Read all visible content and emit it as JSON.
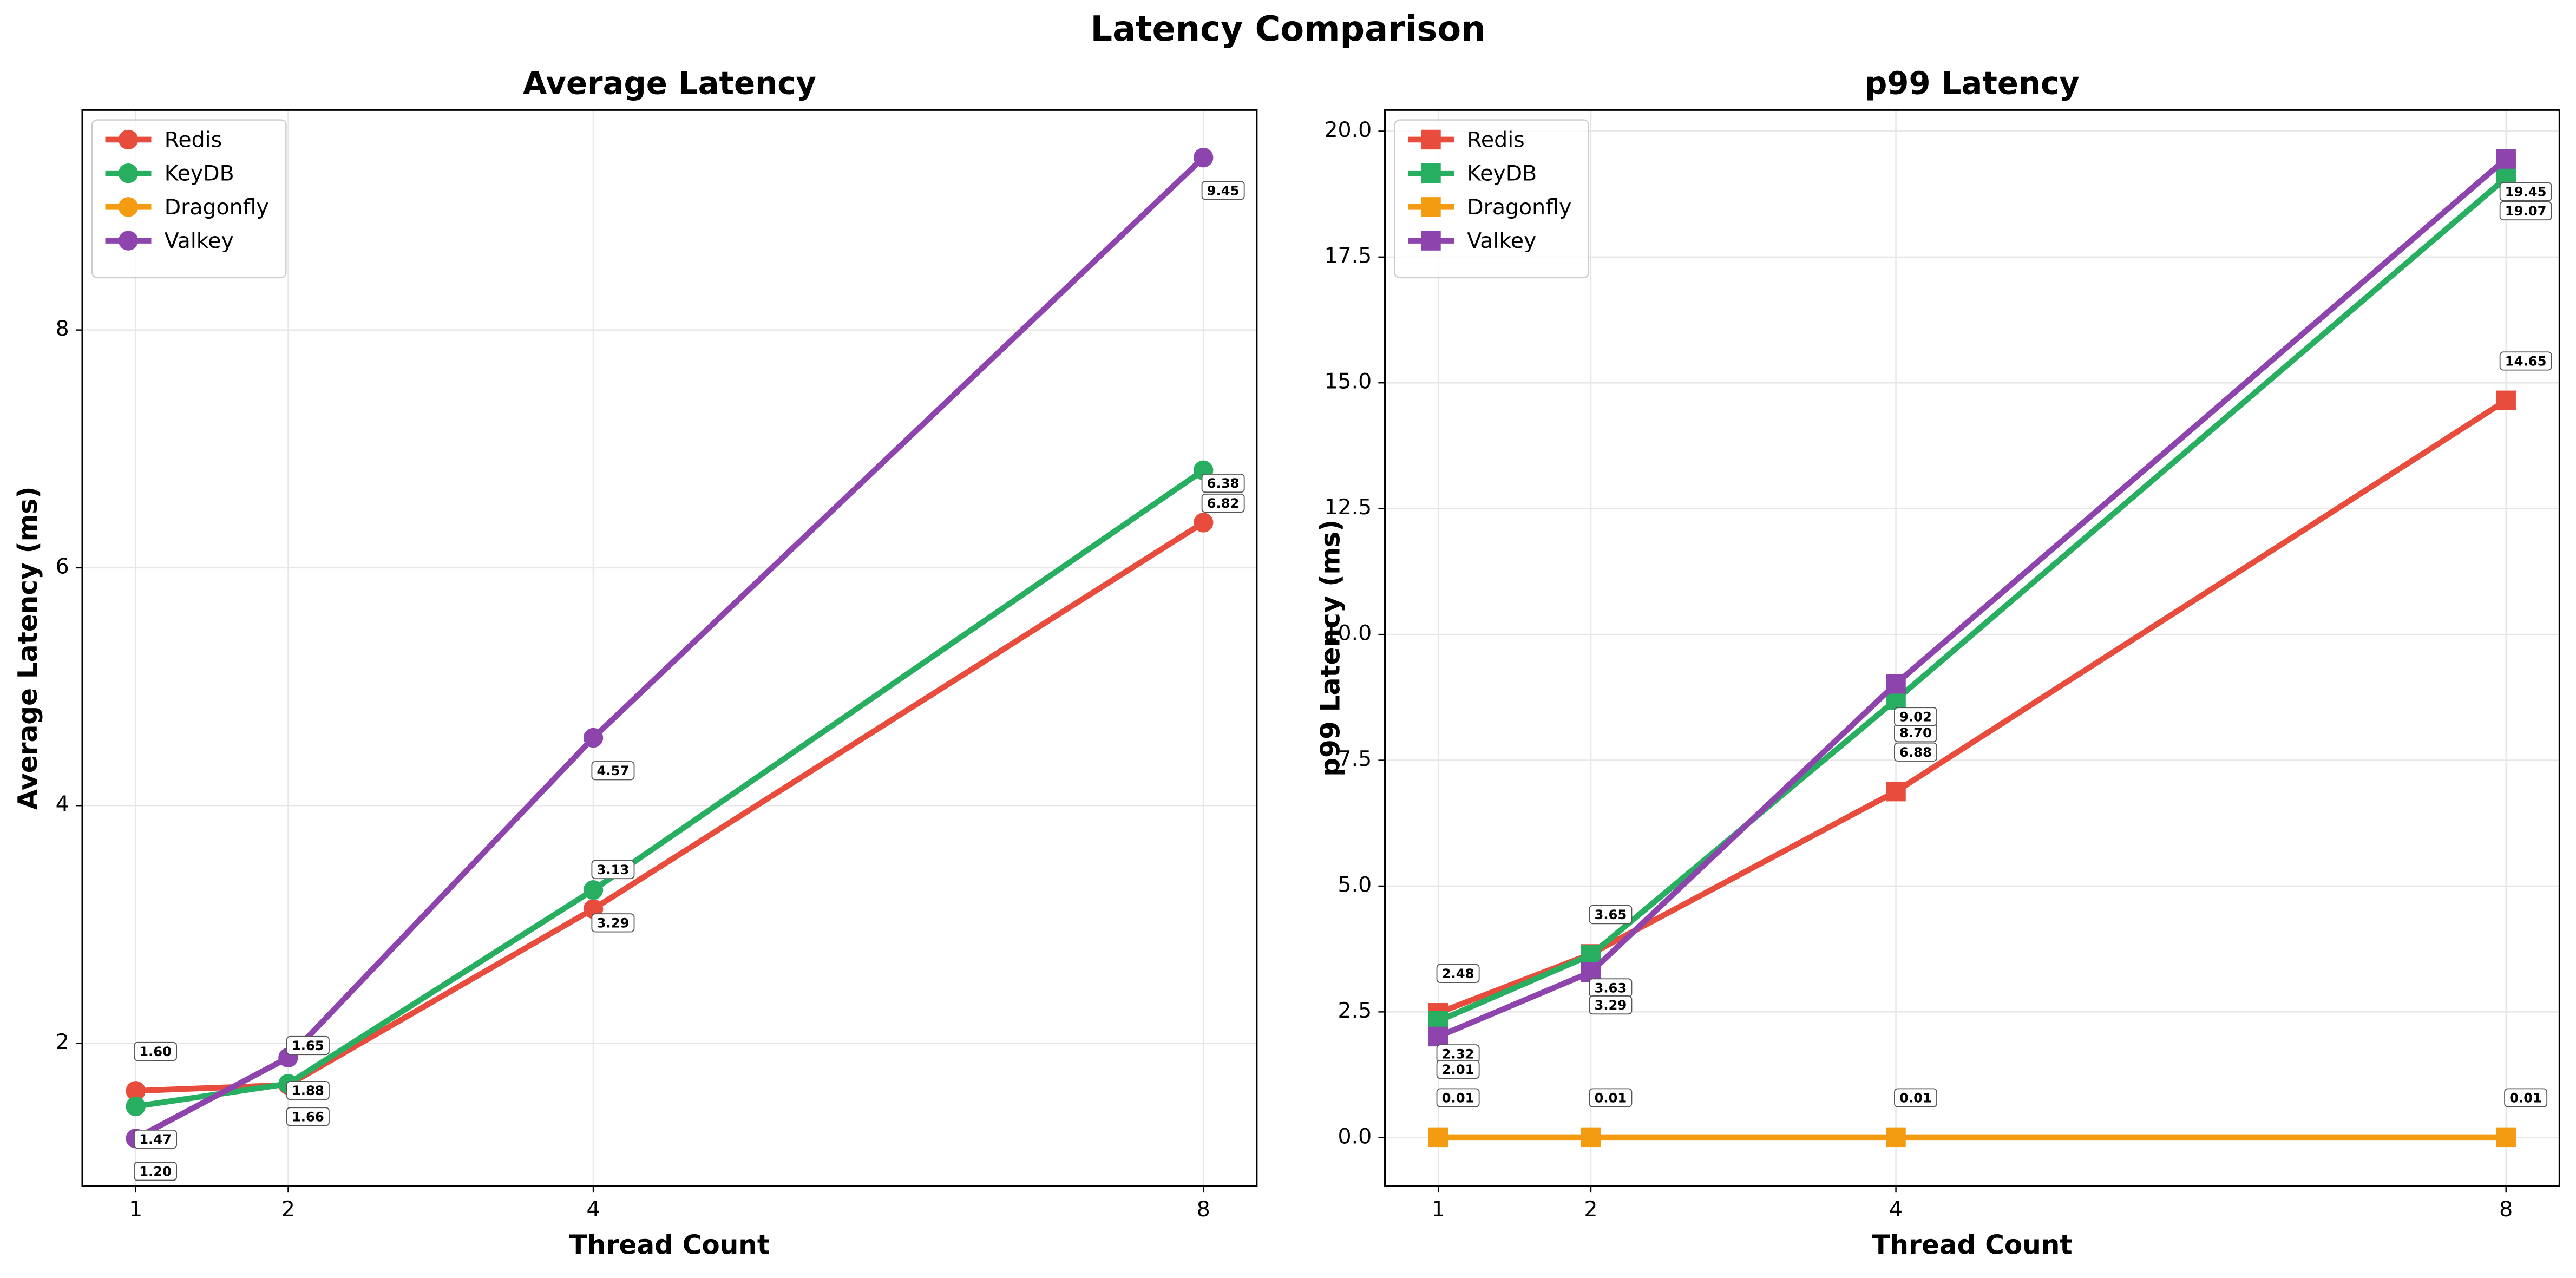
{
  "title": "Latency Comparison",
  "chart_data": [
    {
      "type": "line",
      "title": "Average Latency",
      "x_label": "Thread Count",
      "y_label": "Average Latency (ms)",
      "x": [
        1,
        2,
        4,
        8
      ],
      "xlim": [
        0.65,
        8.35
      ],
      "xticks": [
        1,
        2,
        4,
        8
      ],
      "ylim": [
        0.8,
        9.85
      ],
      "yticks": [
        2,
        4,
        6,
        8
      ],
      "grid": true,
      "legend": "upper left",
      "marker": "circle",
      "series": [
        {
          "name": "Redis",
          "color": "#e74c3c",
          "values": [
            1.6,
            1.65,
            3.13,
            6.38
          ],
          "value_labels": [
            "1.60",
            "1.65",
            "3.13",
            "6.38"
          ]
        },
        {
          "name": "KeyDB",
          "color": "#27ae60",
          "values": [
            1.47,
            1.66,
            3.29,
            6.82
          ],
          "value_labels": [
            "1.47",
            "1.66",
            "3.29",
            "6.82"
          ]
        },
        {
          "name": "Dragonfly",
          "color": "#f39c12",
          "values": [
            null,
            null,
            null,
            null
          ]
        },
        {
          "name": "Valkey",
          "color": "#8e44ad",
          "values": [
            1.2,
            1.88,
            4.57,
            9.45
          ],
          "value_labels": [
            "1.20",
            "1.88",
            "4.57",
            "9.45"
          ]
        }
      ]
    },
    {
      "type": "line",
      "title": "p99 Latency",
      "x_label": "Thread Count",
      "y_label": "p99 Latency (ms)",
      "x": [
        1,
        2,
        4,
        8
      ],
      "xlim": [
        0.65,
        8.35
      ],
      "xticks": [
        1,
        2,
        4,
        8
      ],
      "ylim": [
        -0.96,
        20.42
      ],
      "yticks": [
        {
          "value": 0,
          "label": "0.0"
        },
        2.5,
        {
          "value": 5,
          "label": "5.0"
        },
        7.5,
        {
          "value": 10,
          "label": "10.0"
        },
        12.5,
        {
          "value": 15,
          "label": "15.0"
        },
        17.5,
        {
          "value": 20,
          "label": "20.0"
        }
      ],
      "grid": true,
      "legend": "upper left",
      "marker": "square",
      "series": [
        {
          "name": "Redis",
          "color": "#e74c3c",
          "values": [
            2.48,
            3.65,
            6.88,
            14.65
          ],
          "value_labels": [
            "2.48",
            "3.65",
            "6.88",
            "14.65"
          ]
        },
        {
          "name": "KeyDB",
          "color": "#27ae60",
          "values": [
            2.32,
            3.63,
            8.7,
            19.07
          ],
          "value_labels": [
            "2.32",
            "3.63",
            "8.70",
            "19.07"
          ]
        },
        {
          "name": "Dragonfly",
          "color": "#f39c12",
          "values": [
            0.01,
            0.01,
            0.01,
            0.01
          ]
        },
        {
          "name": "Valkey",
          "color": "#8e44ad",
          "values": [
            2.01,
            3.29,
            9.02,
            19.45
          ],
          "value_labels": [
            "2.01",
            "3.29",
            "9.02",
            "19.45"
          ]
        }
      ]
    }
  ]
}
